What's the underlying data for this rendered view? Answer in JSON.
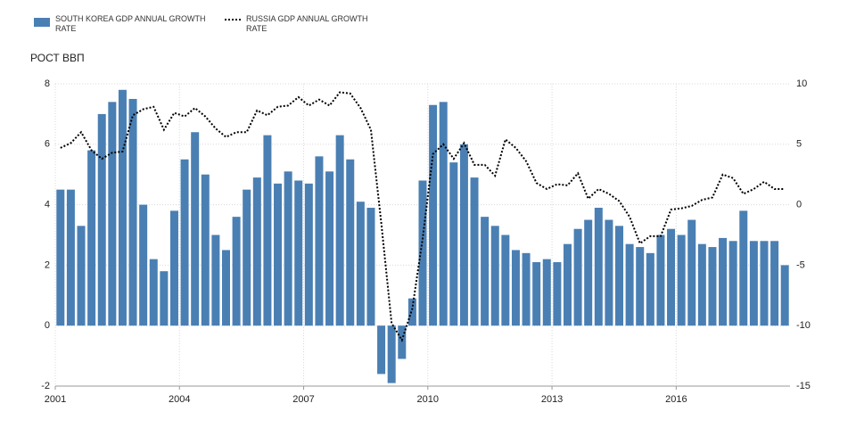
{
  "chart_data": {
    "type": "bar",
    "ylabel": "РОСТ ВВП",
    "x": [
      2001.125,
      2001.375,
      2001.625,
      2001.875,
      2002.125,
      2002.375,
      2002.625,
      2002.875,
      2003.125,
      2003.375,
      2003.625,
      2003.875,
      2004.125,
      2004.375,
      2004.625,
      2004.875,
      2005.125,
      2005.375,
      2005.625,
      2005.875,
      2006.125,
      2006.375,
      2006.625,
      2006.875,
      2007.125,
      2007.375,
      2007.625,
      2007.875,
      2008.125,
      2008.375,
      2008.625,
      2008.875,
      2009.125,
      2009.375,
      2009.625,
      2009.875,
      2010.125,
      2010.375,
      2010.625,
      2010.875,
      2011.125,
      2011.375,
      2011.625,
      2011.875,
      2012.125,
      2012.375,
      2012.625,
      2012.875,
      2013.125,
      2013.375,
      2013.625,
      2013.875,
      2014.125,
      2014.375,
      2014.625,
      2014.875,
      2015.125,
      2015.375,
      2015.625,
      2015.875,
      2016.125,
      2016.375,
      2016.625,
      2016.875,
      2017.125,
      2017.375,
      2017.625,
      2017.875,
      2018.125,
      2018.375,
      2018.625
    ],
    "series": [
      {
        "name": "SOUTH KOREA GDP ANNUAL GROWTH RATE",
        "type": "bar",
        "color": "#4a7fb3",
        "values": [
          4.5,
          4.5,
          3.3,
          5.8,
          7.0,
          7.4,
          7.8,
          7.5,
          4.0,
          2.2,
          1.8,
          3.8,
          5.5,
          6.4,
          5.0,
          3.0,
          2.5,
          3.6,
          4.5,
          4.9,
          6.3,
          4.7,
          5.1,
          4.8,
          4.7,
          5.6,
          5.1,
          6.3,
          5.5,
          4.1,
          3.9,
          -1.6,
          -1.9,
          -1.1,
          0.9,
          4.8,
          7.3,
          7.4,
          5.4,
          6.0,
          4.9,
          3.6,
          3.3,
          3.0,
          2.5,
          2.4,
          2.1,
          2.2,
          2.1,
          2.7,
          3.2,
          3.5,
          3.9,
          3.5,
          3.3,
          2.7,
          2.6,
          2.4,
          3.0,
          3.2,
          3.0,
          3.5,
          2.7,
          2.6,
          2.9,
          2.8,
          3.8,
          2.8,
          2.8,
          2.8,
          2.0
        ]
      },
      {
        "name": "RUSSIA GDP ANNUAL GROWTH RATE",
        "type": "line",
        "axis": "y2",
        "color": "#000000",
        "values": [
          4.7,
          5.1,
          6.0,
          4.5,
          3.8,
          4.3,
          4.4,
          7.4,
          7.9,
          8.1,
          6.2,
          7.6,
          7.3,
          8.0,
          7.3,
          6.3,
          5.6,
          6.0,
          6.0,
          7.8,
          7.4,
          8.1,
          8.2,
          8.9,
          8.2,
          8.7,
          8.2,
          9.3,
          9.2,
          8.0,
          6.2,
          -1.5,
          -9.8,
          -11.2,
          -8.6,
          -2.8,
          4.2,
          5.0,
          3.8,
          5.1,
          3.3,
          3.3,
          2.4,
          5.4,
          4.7,
          3.6,
          1.8,
          1.3,
          1.7,
          1.6,
          2.6,
          0.5,
          1.3,
          0.9,
          0.3,
          -1.0,
          -3.2,
          -2.6,
          -2.6,
          -0.4,
          -0.3,
          -0.1,
          0.4,
          0.6,
          2.5,
          2.2,
          0.9,
          1.3,
          1.9,
          1.3,
          1.3
        ]
      }
    ],
    "xlim": [
      2001,
      2018.75
    ],
    "xticks": [
      2001,
      2004,
      2007,
      2010,
      2013,
      2016
    ],
    "ylim": [
      -2,
      8
    ],
    "yticks": [
      -2,
      0,
      2,
      4,
      6,
      8
    ],
    "y2lim": [
      -15,
      10
    ],
    "y2ticks": [
      -15,
      -10,
      -5,
      0,
      5,
      10
    ],
    "grid": true
  }
}
